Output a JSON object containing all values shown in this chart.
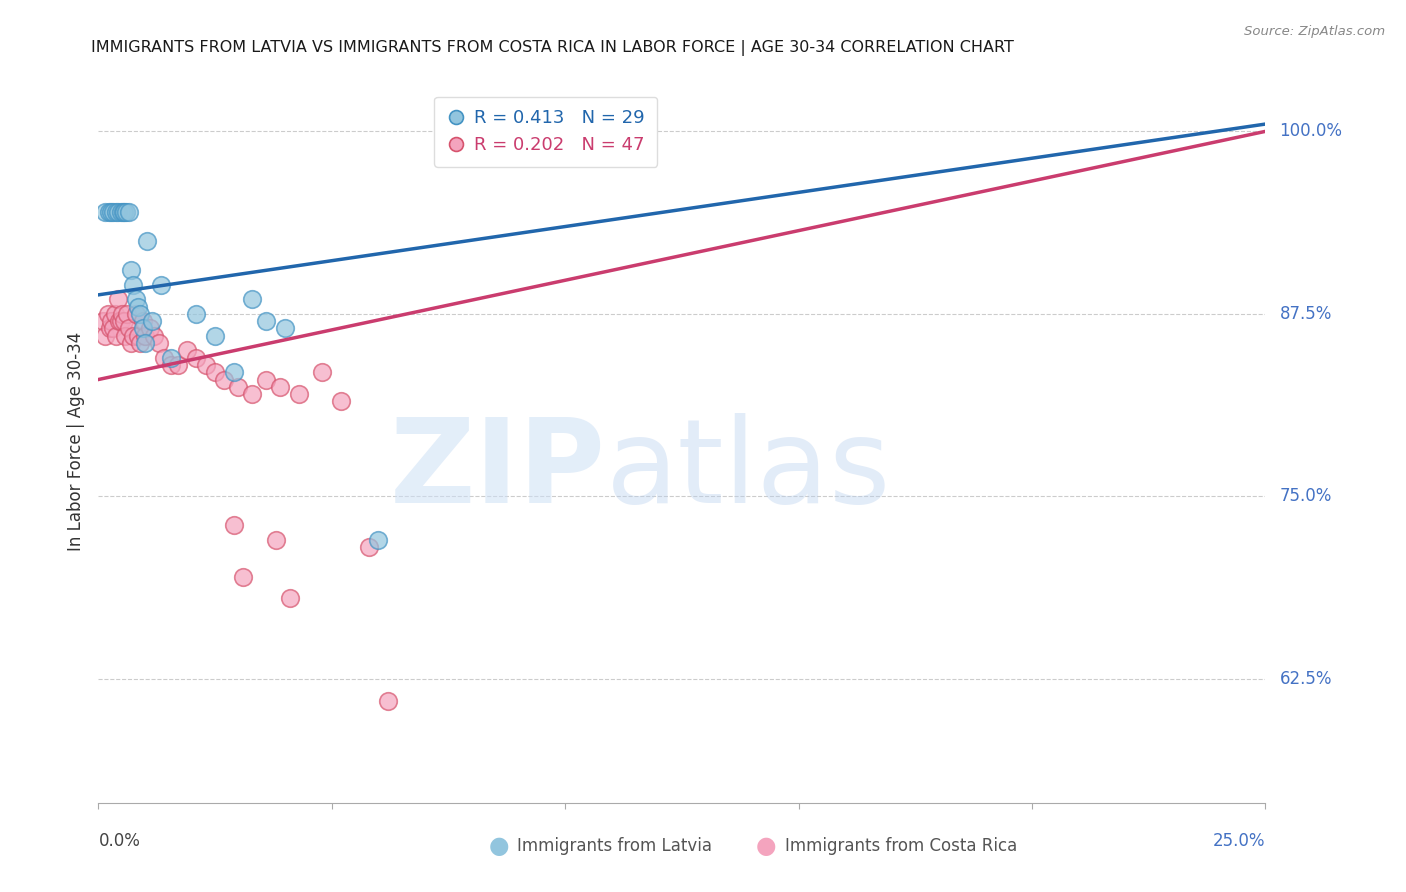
{
  "title": "IMMIGRANTS FROM LATVIA VS IMMIGRANTS FROM COSTA RICA IN LABOR FORCE | AGE 30-34 CORRELATION CHART",
  "source": "Source: ZipAtlas.com",
  "ylabel": "In Labor Force | Age 30-34",
  "yticks": [
    62.5,
    75.0,
    87.5,
    100.0
  ],
  "ytick_labels": [
    "62.5%",
    "75.0%",
    "87.5%",
    "100.0%"
  ],
  "xmin": 0.0,
  "xmax": 25.0,
  "ymin": 54.0,
  "ymax": 103.5,
  "latvia_color": "#92c5de",
  "latvia_edge": "#4393c3",
  "costa_rica_color": "#f4a4be",
  "costa_rica_edge": "#d6536d",
  "trend_blue": "#2166ac",
  "trend_pink": "#ca3c6e",
  "latvia_R": "0.413",
  "latvia_N": 29,
  "costa_rica_R": "0.202",
  "costa_rica_N": 47,
  "latvia_x": [
    0.15,
    0.22,
    0.28,
    0.32,
    0.38,
    0.42,
    0.48,
    0.52,
    0.55,
    0.6,
    0.65,
    0.7,
    0.75,
    0.8,
    0.85,
    0.9,
    0.95,
    1.0,
    1.05,
    1.15,
    1.35,
    1.55,
    2.1,
    2.5,
    2.9,
    3.3,
    3.6,
    4.0,
    6.0
  ],
  "latvia_y": [
    94.5,
    94.5,
    94.5,
    94.5,
    94.5,
    94.5,
    94.5,
    94.5,
    94.5,
    94.5,
    94.5,
    90.5,
    89.5,
    88.5,
    88.0,
    87.5,
    86.5,
    85.5,
    92.5,
    87.0,
    89.5,
    84.5,
    87.5,
    86.0,
    83.5,
    88.5,
    87.0,
    86.5,
    72.0
  ],
  "cr_x": [
    0.1,
    0.15,
    0.2,
    0.25,
    0.28,
    0.32,
    0.35,
    0.38,
    0.42,
    0.45,
    0.48,
    0.5,
    0.55,
    0.58,
    0.62,
    0.65,
    0.7,
    0.75,
    0.8,
    0.85,
    0.9,
    0.95,
    1.0,
    1.1,
    1.2,
    1.3,
    1.4,
    1.55,
    1.7,
    1.9,
    2.1,
    2.3,
    2.5,
    2.7,
    3.0,
    3.3,
    3.6,
    3.9,
    4.3,
    4.8,
    5.2,
    5.8,
    3.8,
    2.9,
    3.1,
    4.1,
    6.2
  ],
  "cr_y": [
    87.0,
    86.0,
    87.5,
    86.5,
    87.0,
    86.5,
    87.5,
    86.0,
    88.5,
    87.0,
    87.0,
    87.5,
    87.0,
    86.0,
    87.5,
    86.5,
    85.5,
    86.0,
    87.5,
    86.0,
    85.5,
    87.0,
    86.0,
    86.5,
    86.0,
    85.5,
    84.5,
    84.0,
    84.0,
    85.0,
    84.5,
    84.0,
    83.5,
    83.0,
    82.5,
    82.0,
    83.0,
    82.5,
    82.0,
    83.5,
    81.5,
    71.5,
    72.0,
    73.0,
    69.5,
    68.0,
    61.0
  ],
  "trend_lv_x0": 0.0,
  "trend_lv_y0": 88.8,
  "trend_lv_x1": 25.0,
  "trend_lv_y1": 100.5,
  "trend_cr_x0": 0.0,
  "trend_cr_y0": 83.0,
  "trend_cr_x1": 25.0,
  "trend_cr_y1": 100.0
}
